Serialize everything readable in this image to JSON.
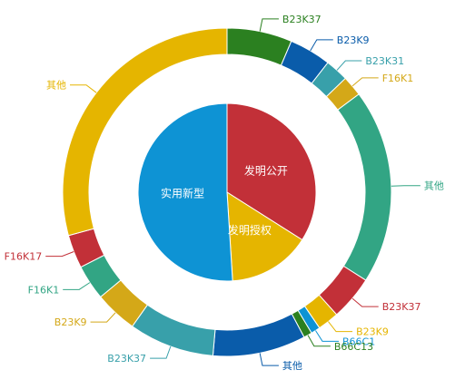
{
  "chart_data": {
    "type": "pie",
    "subtype": "nested-donut",
    "legend": "none",
    "inner": {
      "slices": [
        {
          "label": "发明公开",
          "value": 34,
          "color": "#c23038"
        },
        {
          "label": "发明授权",
          "value": 15,
          "color": "#e5b500"
        },
        {
          "label": "实用新型",
          "value": 51,
          "color": "#0e93d4"
        }
      ]
    },
    "outer": {
      "slices": [
        {
          "label": "B23K37",
          "value": 7.0,
          "color": "#2b8020"
        },
        {
          "label": "B23K9",
          "value": 4.5,
          "color": "#0a5caa"
        },
        {
          "label": "B23K31",
          "value": 2.5,
          "color": "#38a0aa"
        },
        {
          "label": "F16K1",
          "value": 2.2,
          "color": "#d4a818"
        },
        {
          "label": "其他",
          "value": 21.0,
          "color": "#32a584"
        },
        {
          "label": "B23K37",
          "value": 4.8,
          "color": "#c23038"
        },
        {
          "label": "B23K9",
          "value": 2.3,
          "color": "#e5b500"
        },
        {
          "label": "B66C1",
          "value": 1.0,
          "color": "#0e93d4"
        },
        {
          "label": "B66C13",
          "value": 0.9,
          "color": "#2b8020"
        },
        {
          "label": "其他",
          "value": 10.0,
          "color": "#0a5caa"
        },
        {
          "label": "B23K37",
          "value": 9.2,
          "color": "#38a0aa"
        },
        {
          "label": "B23K9",
          "value": 4.6,
          "color": "#d4a818"
        },
        {
          "label": "F16K1",
          "value": 3.8,
          "color": "#32a584"
        },
        {
          "label": "F16K17",
          "value": 3.6,
          "color": "#c23038"
        },
        {
          "label": "其他",
          "value": 32.0,
          "color": "#e5b500"
        }
      ]
    }
  }
}
